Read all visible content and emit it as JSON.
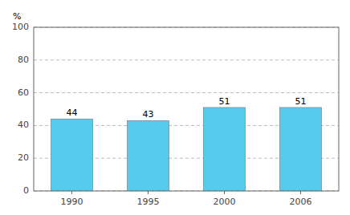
{
  "chart_data": {
    "type": "bar",
    "ylabel": "%",
    "categories": [
      "1990",
      "1995",
      "2000",
      "2006"
    ],
    "values": [
      44,
      43,
      51,
      51
    ],
    "color": "#55CCEE",
    "ylim": [
      0,
      100
    ],
    "yticks": [
      0,
      20,
      40,
      60,
      80,
      100
    ],
    "grid": true,
    "data_labels": true
  }
}
